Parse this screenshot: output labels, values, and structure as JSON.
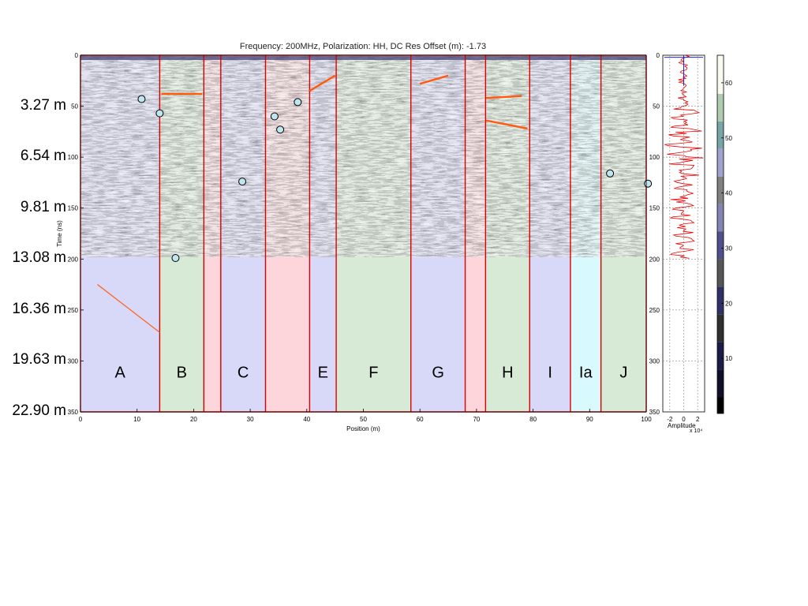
{
  "title": "Frequency: 200MHz,  Polarization: HH,  DC Res Offset (m): -1.73",
  "depth_labels": [
    "3.27 m",
    "6.54 m",
    "9.81 m",
    "13.08 m",
    "16.36 m",
    "19.63 m",
    "22.90 m"
  ],
  "chart_data": [
    {
      "type": "heatmap",
      "title": "Frequency: 200MHz,  Polarization: HH,  DC Res Offset (m): -1.73",
      "xlabel": "Position (m)",
      "ylabel": "Time (ns)",
      "xlim": [
        0,
        100
      ],
      "ylim": [
        350,
        0
      ],
      "xticks": [
        0,
        10,
        20,
        30,
        40,
        50,
        60,
        70,
        80,
        90,
        100
      ],
      "yticks": [
        0,
        50,
        100,
        150,
        200,
        250,
        300,
        350
      ],
      "data_extent_time": 198,
      "zone_colors": {
        "blue": "#d8d8f8",
        "green": "#d6ead6",
        "red": "#fcd6da",
        "cyan": "#d8fafc"
      },
      "zone_boundary_color": "#dd0000",
      "zones": [
        {
          "label": "A",
          "x_start": 0,
          "x_end": 14,
          "color": "blue"
        },
        {
          "label": "B",
          "x_start": 14,
          "x_end": 21.8,
          "color": "green"
        },
        {
          "label": "",
          "x_start": 21.8,
          "x_end": 24.8,
          "color": "red"
        },
        {
          "label": "C",
          "x_start": 24.8,
          "x_end": 32.7,
          "color": "blue"
        },
        {
          "label": "",
          "x_start": 32.7,
          "x_end": 40.5,
          "color": "red"
        },
        {
          "label": "E",
          "x_start": 40.5,
          "x_end": 45.2,
          "color": "blue"
        },
        {
          "label": "F",
          "x_start": 45.2,
          "x_end": 58.4,
          "color": "green"
        },
        {
          "label": "G",
          "x_start": 58.4,
          "x_end": 68,
          "color": "blue"
        },
        {
          "label": "",
          "x_start": 68,
          "x_end": 71.6,
          "color": "red"
        },
        {
          "label": "H",
          "x_start": 71.6,
          "x_end": 79.4,
          "color": "green"
        },
        {
          "label": "I",
          "x_start": 79.4,
          "x_end": 86.6,
          "color": "blue"
        },
        {
          "label": "Ia",
          "x_start": 86.6,
          "x_end": 92,
          "color": "cyan"
        },
        {
          "label": "J",
          "x_start": 92,
          "x_end": 100,
          "color": "green"
        }
      ],
      "zone_label_time": 310,
      "picked_reflectors": [
        {
          "x1": 14.3,
          "t1": 38,
          "x2": 21.5,
          "t2": 38
        },
        {
          "x1": 40.5,
          "t1": 35,
          "x2": 45,
          "t2": 20
        },
        {
          "x1": 60,
          "t1": 28,
          "x2": 65,
          "t2": 20
        },
        {
          "x1": 71.7,
          "t1": 42,
          "x2": 78,
          "t2": 40
        },
        {
          "x1": 71.7,
          "t1": 64,
          "x2": 79,
          "t2": 72
        }
      ],
      "annotation_line": {
        "x1": 3,
        "t1": 225,
        "x2": 14,
        "t2": 272,
        "color": "#ff6622"
      },
      "point_targets": [
        {
          "x": 10.8,
          "t": 43
        },
        {
          "x": 14,
          "t": 57
        },
        {
          "x": 16.8,
          "t": 199
        },
        {
          "x": 28.6,
          "t": 124
        },
        {
          "x": 34.3,
          "t": 60
        },
        {
          "x": 35.3,
          "t": 73
        },
        {
          "x": 38.4,
          "t": 46
        },
        {
          "x": 93.6,
          "t": 116
        },
        {
          "x": 100.3,
          "t": 126
        }
      ]
    },
    {
      "type": "line",
      "xlabel": "Amplitude",
      "exponent_label": "x 10⁴",
      "xlim": [
        -3,
        3
      ],
      "ylim": [
        350,
        0
      ],
      "xticks": [
        -2,
        0,
        2
      ],
      "yticks": [
        0,
        50,
        100,
        150,
        200,
        250,
        300,
        350
      ],
      "series_color": "#ee0000",
      "marker_color": "#2222cc"
    },
    {
      "type": "colorbar",
      "range": [
        0,
        65
      ],
      "ticks": [
        10,
        20,
        30,
        40,
        50,
        60
      ],
      "segments": [
        {
          "from": 0,
          "to": 3,
          "color": "#000000"
        },
        {
          "from": 3,
          "to": 8,
          "color": "#10102a"
        },
        {
          "from": 8,
          "to": 13,
          "color": "#1c1c48"
        },
        {
          "from": 13,
          "to": 18,
          "color": "#303030"
        },
        {
          "from": 18,
          "to": 23,
          "color": "#303068"
        },
        {
          "from": 23,
          "to": 28,
          "color": "#565656"
        },
        {
          "from": 28,
          "to": 33,
          "color": "#50508c"
        },
        {
          "from": 33,
          "to": 38,
          "color": "#8484b4"
        },
        {
          "from": 38,
          "to": 43,
          "color": "#808080"
        },
        {
          "from": 43,
          "to": 48,
          "color": "#a2a2d0"
        },
        {
          "from": 48,
          "to": 53,
          "color": "#78a6a6"
        },
        {
          "from": 53,
          "to": 58,
          "color": "#b0ccb0"
        },
        {
          "from": 58,
          "to": 65,
          "color": "#fafaf0"
        }
      ]
    }
  ]
}
